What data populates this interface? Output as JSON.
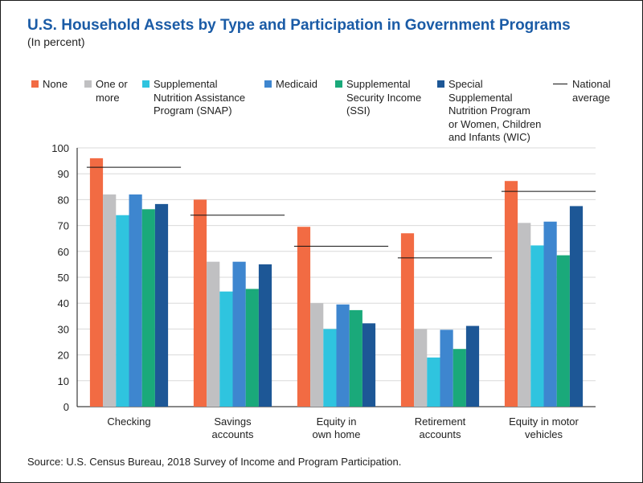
{
  "title": "U.S. Household Assets by Type and Participation in Government Programs",
  "subtitle": "(In percent)",
  "source": "Source: U.S. Census Bureau, 2018 Survey of Income and Program Participation.",
  "legend": [
    {
      "label": "None",
      "color": "#f26b43",
      "kind": "swatch"
    },
    {
      "label": "One or\nmore",
      "color": "#c0c0c2",
      "kind": "swatch"
    },
    {
      "label": "Supplemental\nNutrition Assistance\nProgram (SNAP)",
      "color": "#2fc4df",
      "kind": "swatch"
    },
    {
      "label": "Medicaid",
      "color": "#3e86cf",
      "kind": "swatch"
    },
    {
      "label": "Supplemental\nSecurity Income\n(SSI)",
      "color": "#1aa97a",
      "kind": "swatch"
    },
    {
      "label": "Special\nSupplemental\nNutrition Program\nor Women, Children\nand Infants (WIC)",
      "color": "#1d5796",
      "kind": "swatch"
    },
    {
      "label": "National\naverage",
      "color": "#111111",
      "kind": "line"
    }
  ],
  "chart_data": {
    "type": "bar",
    "categories": [
      "Checking",
      "Savings\naccounts",
      "Equity in\nown home",
      "Retirement\naccounts",
      "Equity in motor\nvehicles"
    ],
    "ylim": [
      0,
      100
    ],
    "yticks": [
      0,
      10,
      20,
      30,
      40,
      50,
      60,
      70,
      80,
      90,
      100
    ],
    "grid": true,
    "legend_position": "top",
    "series": [
      {
        "name": "None",
        "color": "#f26b43",
        "values": [
          96,
          80,
          69.5,
          67,
          87.2
        ]
      },
      {
        "name": "One or more",
        "color": "#c0c0c2",
        "values": [
          82,
          56,
          40,
          30,
          71
        ]
      },
      {
        "name": "Supplemental Nutrition Assistance Program (SNAP)",
        "color": "#2fc4df",
        "values": [
          74,
          44.5,
          30,
          19,
          62.3
        ]
      },
      {
        "name": "Medicaid",
        "color": "#3e86cf",
        "values": [
          82,
          56,
          39.5,
          29.7,
          71.5
        ]
      },
      {
        "name": "Supplemental Security Income (SSI)",
        "color": "#1aa97a",
        "values": [
          76.3,
          45.5,
          37.3,
          22.3,
          58.5
        ]
      },
      {
        "name": "Special Supplemental Nutrition Program or Women, Children and Infants (WIC)",
        "color": "#1d5796",
        "values": [
          78.3,
          55,
          32.2,
          31.2,
          77.5
        ]
      }
    ],
    "national_average": {
      "name": "National average",
      "values": [
        92.5,
        74,
        62,
        57.5,
        83.2
      ]
    }
  }
}
